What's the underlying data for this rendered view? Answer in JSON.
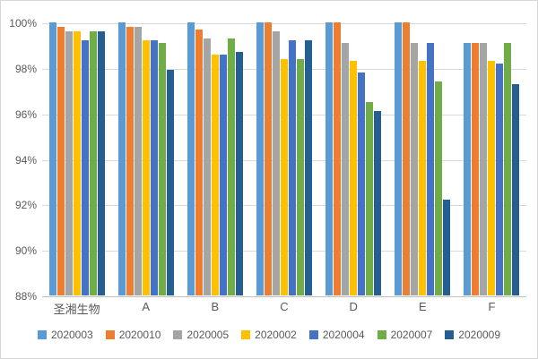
{
  "chart_data": {
    "type": "bar",
    "title": "",
    "xlabel": "",
    "ylabel": "",
    "categories": [
      "圣湘生物",
      "A",
      "B",
      "C",
      "D",
      "E",
      "F"
    ],
    "series": [
      {
        "name": "2020003",
        "color": "#5B9BD5",
        "values": [
          100,
          100,
          100,
          100,
          100,
          100,
          99.1
        ]
      },
      {
        "name": "2020010",
        "color": "#ED7D31",
        "values": [
          99.8,
          99.8,
          99.7,
          100,
          100,
          100,
          99.1
        ]
      },
      {
        "name": "2020005",
        "color": "#A5A5A5",
        "values": [
          99.6,
          99.8,
          99.3,
          99.6,
          99.1,
          99.1,
          99.1
        ]
      },
      {
        "name": "2020002",
        "color": "#FFC000",
        "values": [
          99.6,
          99.2,
          98.6,
          98.4,
          98.3,
          98.3,
          98.3
        ]
      },
      {
        "name": "2020004",
        "color": "#4472C4",
        "values": [
          99.2,
          99.2,
          98.6,
          99.2,
          97.8,
          99.1,
          98.2
        ]
      },
      {
        "name": "2020007",
        "color": "#70AD47",
        "values": [
          99.6,
          99.1,
          99.3,
          98.4,
          96.5,
          97.4,
          99.1
        ]
      },
      {
        "name": "2020009",
        "color": "#255E91",
        "values": [
          99.6,
          97.9,
          98.7,
          99.2,
          96.1,
          92.2,
          97.3
        ]
      }
    ],
    "y_axis": {
      "min": 88,
      "max": 100,
      "step": 2,
      "tick_labels": [
        "100%",
        "98%",
        "96%",
        "94%",
        "92%",
        "90%",
        "88%"
      ]
    },
    "grid": true,
    "legend_position": "bottom"
  },
  "style_colors": {
    "text": "#595959",
    "gridline": "#D9D9D9",
    "axis_line": "#BFBFBF",
    "background": "#FFFFFF",
    "frame_border": "#D6D6D6"
  }
}
